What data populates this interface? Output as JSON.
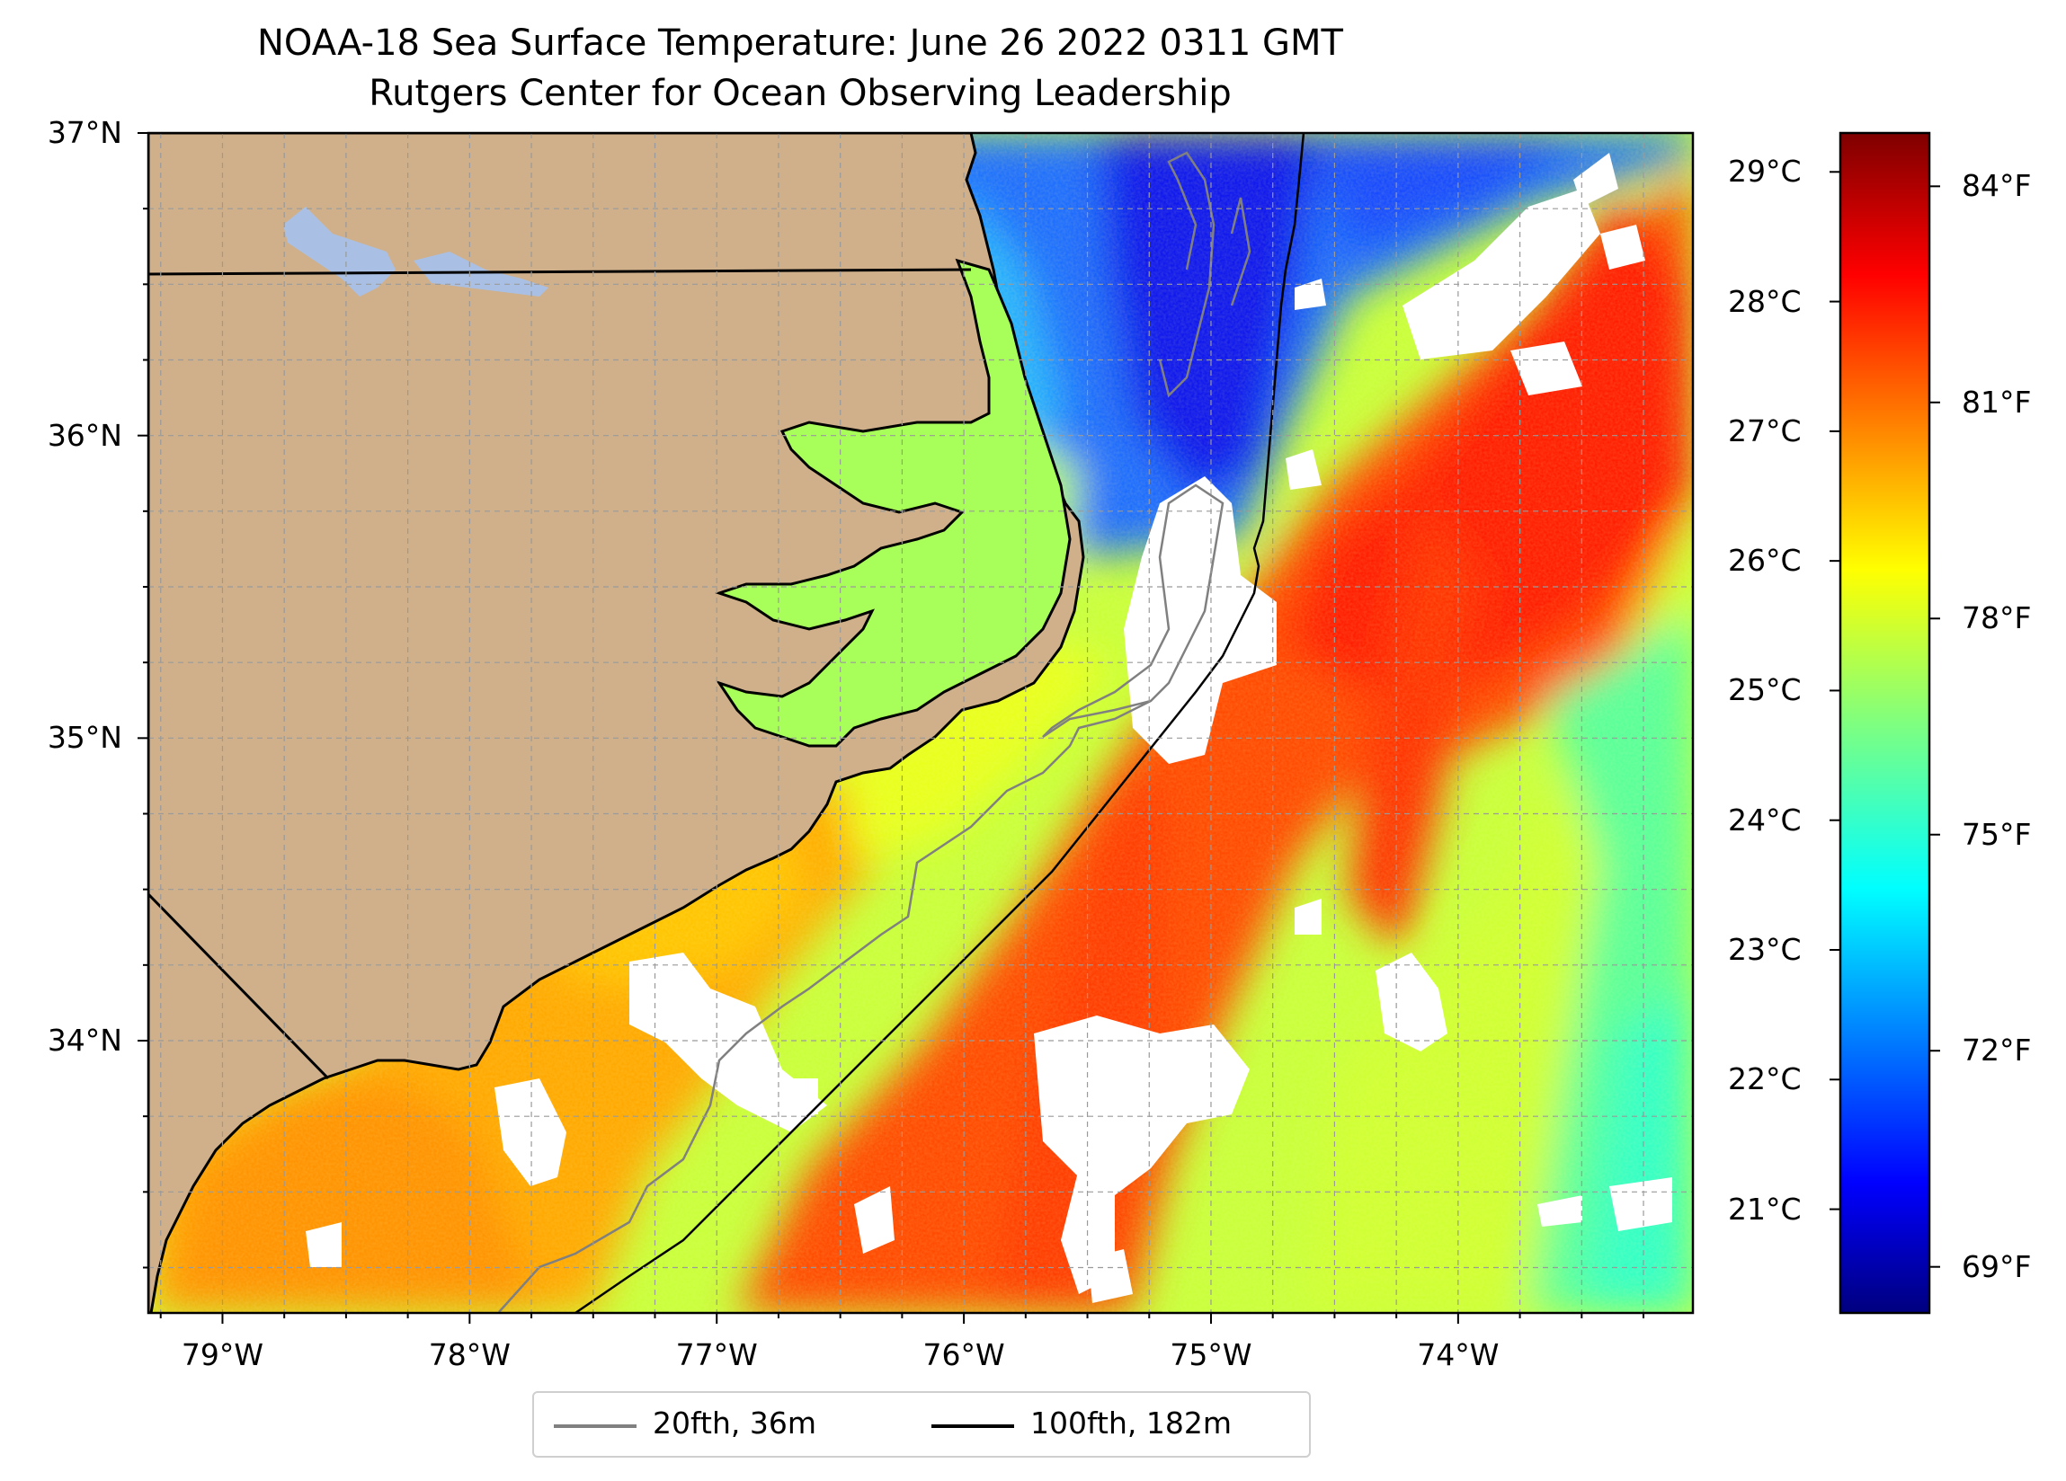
{
  "title": {
    "line1": "NOAA-18 Sea Surface Temperature: June 26 2022 0311 GMT",
    "line2": "Rutgers Center for Ocean Observing Leadership"
  },
  "map": {
    "lon_range": [
      -79.3,
      -73.05
    ],
    "lat_range": [
      33.1,
      37.0
    ],
    "gridlines": "dashed",
    "land_color": "#cfb08a",
    "lake_color": "#a9c0e4",
    "cloud_mask_color": "#ffffff"
  },
  "axes": {
    "lat_ticks": [
      {
        "value": 37,
        "label": "37°N"
      },
      {
        "value": 36,
        "label": "36°N"
      },
      {
        "value": 35,
        "label": "35°N"
      },
      {
        "value": 34,
        "label": "34°N"
      }
    ],
    "lon_ticks": [
      {
        "value": -79,
        "label": "79°W"
      },
      {
        "value": -78,
        "label": "78°W"
      },
      {
        "value": -77,
        "label": "77°W"
      },
      {
        "value": -76,
        "label": "76°W"
      },
      {
        "value": -75,
        "label": "75°W"
      },
      {
        "value": -74,
        "label": "74°W"
      }
    ]
  },
  "colorbar": {
    "colormap": "jet",
    "range_celsius": [
      20.2,
      29.3
    ],
    "celsius_ticks": [
      {
        "value": 29,
        "label": "29°C"
      },
      {
        "value": 28,
        "label": "28°C"
      },
      {
        "value": 27,
        "label": "27°C"
      },
      {
        "value": 26,
        "label": "26°C"
      },
      {
        "value": 25,
        "label": "25°C"
      },
      {
        "value": 24,
        "label": "24°C"
      },
      {
        "value": 23,
        "label": "23°C"
      },
      {
        "value": 22,
        "label": "22°C"
      },
      {
        "value": 21,
        "label": "21°C"
      }
    ],
    "fahrenheit_ticks": [
      {
        "value": 84,
        "label": "84°F"
      },
      {
        "value": 81,
        "label": "81°F"
      },
      {
        "value": 78,
        "label": "78°F"
      },
      {
        "value": 75,
        "label": "75°F"
      },
      {
        "value": 72,
        "label": "72°F"
      },
      {
        "value": 69,
        "label": "69°F"
      }
    ]
  },
  "legend": {
    "placement": "bottom-center",
    "items": [
      {
        "label": "20fth, 36m",
        "color": "#808080"
      },
      {
        "label": "100fth, 182m",
        "color": "#000000"
      }
    ]
  }
}
